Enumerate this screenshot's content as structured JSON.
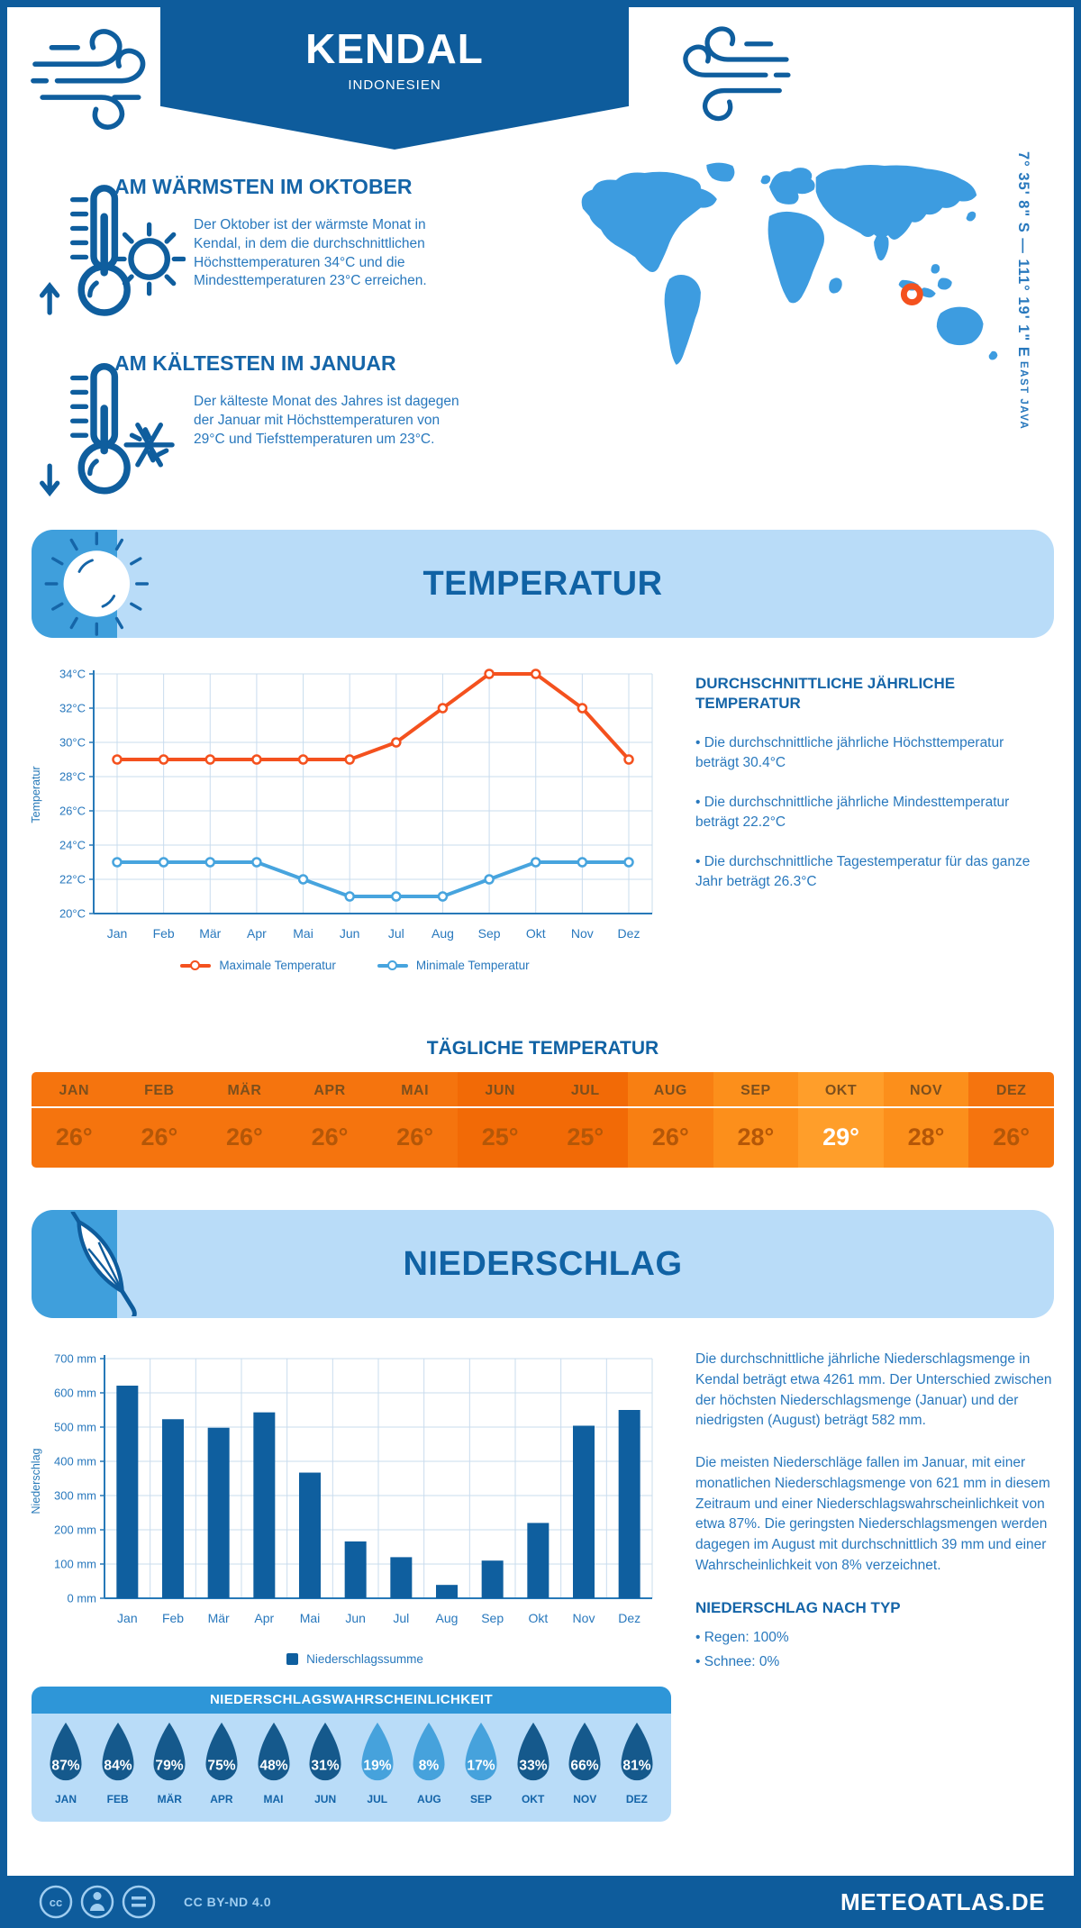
{
  "header": {
    "title": "KENDAL",
    "subtitle": "INDONESIEN"
  },
  "highlights": [
    {
      "title": "AM WÄRMSTEN IM OKTOBER",
      "text": "Der Oktober ist der wärmste Monat in Kendal, in dem die durchschnittlichen Höchsttemperaturen 34°C und die Mindesttemperaturen 23°C erreichen.",
      "icon": "thermometer-up-sun-icon"
    },
    {
      "title": "AM KÄLTESTEN IM JANUAR",
      "text": "Der kälteste Monat des Jahres ist dagegen der Januar mit Höchsttemperaturen von 29°C und Tiefsttemperaturen um 23°C.",
      "icon": "thermometer-down-snowflake-icon"
    }
  ],
  "map": {
    "coords": "7° 35' 8\" S — 111° 19' 1\" E",
    "region": "EAST JAVA",
    "marker_color": "#f4511e",
    "land_color": "#3d9ce0"
  },
  "temperature_section": {
    "title": "TEMPERATUR",
    "annual": {
      "title": "DURCHSCHNITTLICHE JÄHRLICHE TEMPERATUR",
      "bullets": [
        "• Die durchschnittliche jährliche Höchsttemperatur beträgt 30.4°C",
        "• Die durchschnittliche jährliche Mindesttemperatur beträgt 22.2°C",
        "• Die durchschnittliche Tagestemperatur für das ganze Jahr beträgt 26.3°C"
      ]
    },
    "daily": {
      "title": "TÄGLICHE TEMPERATUR",
      "months": [
        "JAN",
        "FEB",
        "MÄR",
        "APR",
        "MAI",
        "JUN",
        "JUL",
        "AUG",
        "SEP",
        "OKT",
        "NOV",
        "DEZ"
      ],
      "values": [
        "26°",
        "26°",
        "26°",
        "26°",
        "26°",
        "25°",
        "25°",
        "26°",
        "28°",
        "29°",
        "28°",
        "26°"
      ],
      "cell_colors": [
        "#f5740e",
        "#f5740e",
        "#f5740e",
        "#f5740e",
        "#f5740e",
        "#f26a06",
        "#f26a06",
        "#f87f12",
        "#fc8f1b",
        "#ff9e2a",
        "#fc8f1b",
        "#f5740e"
      ],
      "highlight_index": 9
    }
  },
  "precipitation_section": {
    "title": "NIEDERSCHLAG",
    "paragraphs": [
      "Die durchschnittliche jährliche Niederschlagsmenge in Kendal beträgt etwa 4261 mm. Der Unterschied zwischen der höchsten Niederschlagsmenge (Januar) und der niedrigsten (August) beträgt 582 mm.",
      "Die meisten Niederschläge fallen im Januar, mit einer monatlichen Niederschlagsmenge von 621 mm in diesem Zeitraum und einer Niederschlagswahrscheinlichkeit von etwa 87%. Die geringsten Niederschlagsmengen werden dagegen im August mit durchschnittlich 39 mm und einer Wahrscheinlichkeit von 8% verzeichnet."
    ],
    "by_type": {
      "title": "NIEDERSCHLAG NACH TYP",
      "bullets": [
        "• Regen: 100%",
        "• Schnee: 0%"
      ]
    },
    "probability": {
      "title": "NIEDERSCHLAGSWAHRSCHEINLICHKEIT",
      "months": [
        "JAN",
        "FEB",
        "MÄR",
        "APR",
        "MAI",
        "JUN",
        "JUL",
        "AUG",
        "SEP",
        "OKT",
        "NOV",
        "DEZ"
      ],
      "values": [
        "87%",
        "84%",
        "79%",
        "75%",
        "48%",
        "31%",
        "19%",
        "8%",
        "17%",
        "33%",
        "66%",
        "81%"
      ],
      "colors": [
        "#15598c",
        "#15598c",
        "#15598c",
        "#15598c",
        "#15598c",
        "#15598c",
        "#46a2dc",
        "#46a2dc",
        "#46a2dc",
        "#15598c",
        "#15598c",
        "#15598c"
      ]
    }
  },
  "footer": {
    "license": "CC BY-ND 4.0",
    "site": "METEOATLAS.DE"
  },
  "colors": {
    "navy": "#0e5c9c",
    "heading_blue": "#1565a8",
    "body_blue": "#2878bd",
    "panel_light_blue": "#b9dcf8",
    "max_line": "#f4511e",
    "min_line": "#47a4de",
    "bar_blue": "#0f5f9f",
    "table_orange": "#f5740e",
    "probability_header": "#2e96d8"
  },
  "chart_data": [
    {
      "type": "line",
      "x": [
        "Jan",
        "Feb",
        "Mär",
        "Apr",
        "Mai",
        "Jun",
        "Jul",
        "Aug",
        "Sep",
        "Okt",
        "Nov",
        "Dez"
      ],
      "series": [
        {
          "name": "Maximale Temperatur",
          "color": "#f4511e",
          "values": [
            29,
            29,
            29,
            29,
            29,
            29,
            30,
            32,
            34,
            34,
            32,
            29
          ]
        },
        {
          "name": "Minimale Temperatur",
          "color": "#47a4de",
          "values": [
            23,
            23,
            23,
            23,
            22,
            21,
            21,
            21,
            22,
            23,
            23,
            23
          ]
        }
      ],
      "ylim": [
        20,
        34
      ],
      "yticks": [
        "20°C",
        "22°C",
        "24°C",
        "26°C",
        "28°C",
        "30°C",
        "32°C",
        "34°C"
      ],
      "ylabel": "Temperatur",
      "grid": true,
      "legend_position": "bottom"
    },
    {
      "type": "bar",
      "x": [
        "Jan",
        "Feb",
        "Mär",
        "Apr",
        "Mai",
        "Jun",
        "Jul",
        "Aug",
        "Sep",
        "Okt",
        "Nov",
        "Dez"
      ],
      "values": [
        621,
        523,
        498,
        543,
        367,
        166,
        120,
        39,
        110,
        220,
        504,
        550
      ],
      "color": "#0f5f9f",
      "ylim": [
        0,
        700
      ],
      "yticks": [
        "0 mm",
        "100 mm",
        "200 mm",
        "300 mm",
        "400 mm",
        "500 mm",
        "600 mm",
        "700 mm"
      ],
      "ylabel": "Niederschlag",
      "legend": "Niederschlagssumme",
      "grid": true
    }
  ]
}
